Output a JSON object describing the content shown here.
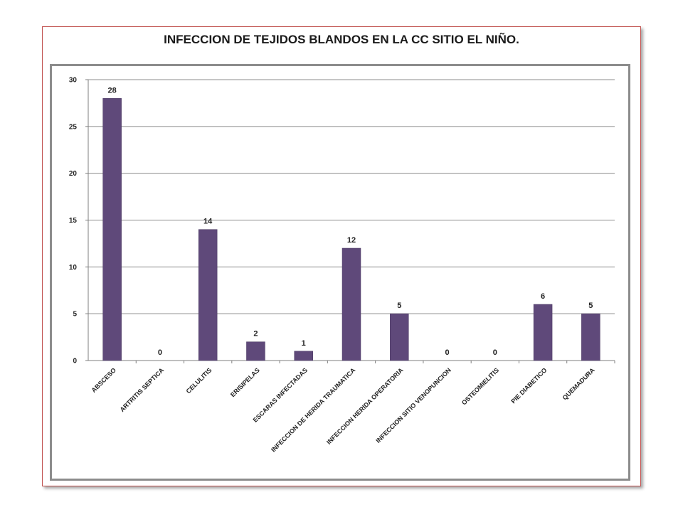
{
  "chart_data": {
    "type": "bar",
    "title": "INFECCION DE TEJIDOS BLANDOS EN LA CC SITIO EL NIÑO.",
    "categories": [
      "ABSCESO",
      "ARTRITIS SEPTICA",
      "CELULITIS",
      "ERISIPELAS",
      "ESCARAS INFECTADAS",
      "INFECCION DE HERIDA TRAUMATICA",
      "INFECCION HERIDA OPERATORIA",
      "INFECCION SITIO VENOPUNCION",
      "OSTEOMIELITIS",
      "PIE DIABETICO",
      "QUEMADURA"
    ],
    "values": [
      28,
      0,
      14,
      2,
      1,
      12,
      5,
      0,
      0,
      6,
      5
    ],
    "ylim": [
      0,
      30
    ],
    "yticks": [
      0,
      5,
      10,
      15,
      20,
      25,
      30
    ],
    "grid": true,
    "legend": "none",
    "colors": {
      "bar": "#5f497a",
      "bar_edge": "#4b3a62",
      "grid": "#8c8c8c",
      "axis": "#7f7f7f"
    }
  }
}
